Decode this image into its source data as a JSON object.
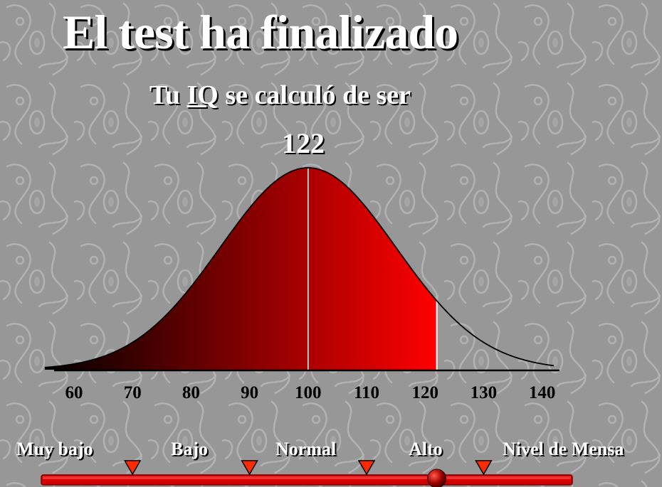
{
  "header": {
    "title": "El test ha finalizado",
    "subtitle_prefix": "Tu ",
    "subtitle_iq": "IQ",
    "subtitle_suffix": " se calculó de ser",
    "score": "122"
  },
  "chart_data": {
    "type": "area",
    "x_ticks": [
      60,
      70,
      80,
      90,
      100,
      110,
      120,
      130,
      140
    ],
    "xlim": [
      55,
      142
    ],
    "mean": 100,
    "std_dev": 15,
    "shaded_to": 122,
    "mean_marker": 100,
    "gradient_colors": [
      "#000000",
      "#ff0000"
    ]
  },
  "scale": {
    "levels": [
      {
        "label": "Muy bajo"
      },
      {
        "label": "Bajo"
      },
      {
        "label": "Normal"
      },
      {
        "label": "Alto"
      },
      {
        "label": "Nivel de Mensa"
      }
    ],
    "thresholds": [
      70,
      90,
      110,
      130
    ],
    "marker_value": 122,
    "bar_color": "#d40000",
    "marker_color": "#ff2a00"
  }
}
